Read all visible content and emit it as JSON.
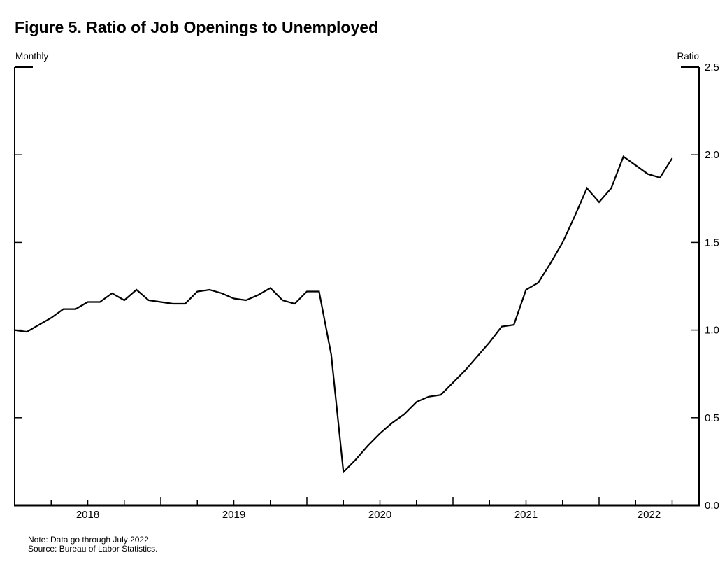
{
  "page": {
    "title": "Figure 5. Ratio of Job Openings to Unemployed",
    "frequency_label": "Monthly",
    "unit_label": "Ratio",
    "note": "Note: Data go through July 2022.",
    "source": "Source: Bureau of Labor Statistics."
  },
  "chart_data": {
    "type": "line",
    "title": "Figure 5. Ratio of Job Openings to Unemployed",
    "frequency_label": "Monthly",
    "unit_label": "Ratio",
    "xlabel": "",
    "ylabel": "Ratio",
    "ylim": [
      0,
      2.5
    ],
    "y_tick_labels": [
      "0.0",
      "0.5",
      "1.0",
      "1.5",
      "2.0",
      "2.5"
    ],
    "x_tick_year_labels": [
      "2018",
      "2019",
      "2020",
      "2021",
      "2022"
    ],
    "x_minor_ticks": "quarterly",
    "x_major_ticks": "january-of-year",
    "grid": false,
    "legend_position": "none",
    "line_color": "#000000",
    "x_start": "2018-01",
    "x_end": "2022-07",
    "series": [
      {
        "name": "Ratio of job openings to unemployed",
        "color": "#000000",
        "months": [
          "2018-01",
          "2018-02",
          "2018-03",
          "2018-04",
          "2018-05",
          "2018-06",
          "2018-07",
          "2018-08",
          "2018-09",
          "2018-10",
          "2018-11",
          "2018-12",
          "2019-01",
          "2019-02",
          "2019-03",
          "2019-04",
          "2019-05",
          "2019-06",
          "2019-07",
          "2019-08",
          "2019-09",
          "2019-10",
          "2019-11",
          "2019-12",
          "2020-01",
          "2020-02",
          "2020-03",
          "2020-04",
          "2020-05",
          "2020-06",
          "2020-07",
          "2020-08",
          "2020-09",
          "2020-10",
          "2020-11",
          "2020-12",
          "2021-01",
          "2021-02",
          "2021-03",
          "2021-04",
          "2021-05",
          "2021-06",
          "2021-07",
          "2021-08",
          "2021-09",
          "2021-10",
          "2021-11",
          "2021-12",
          "2022-01",
          "2022-02",
          "2022-03",
          "2022-04",
          "2022-05",
          "2022-06",
          "2022-07"
        ],
        "values": [
          1.0,
          0.99,
          1.03,
          1.07,
          1.12,
          1.12,
          1.16,
          1.16,
          1.21,
          1.17,
          1.23,
          1.17,
          1.16,
          1.15,
          1.15,
          1.22,
          1.23,
          1.21,
          1.18,
          1.17,
          1.2,
          1.24,
          1.17,
          1.15,
          1.22,
          1.22,
          0.86,
          0.19,
          0.26,
          0.34,
          0.41,
          0.47,
          0.52,
          0.59,
          0.62,
          0.63,
          0.7,
          0.77,
          0.85,
          0.93,
          1.02,
          1.03,
          1.23,
          1.27,
          1.38,
          1.5,
          1.65,
          1.81,
          1.73,
          1.81,
          1.99,
          1.94,
          1.89,
          1.87,
          1.98
        ]
      }
    ]
  }
}
